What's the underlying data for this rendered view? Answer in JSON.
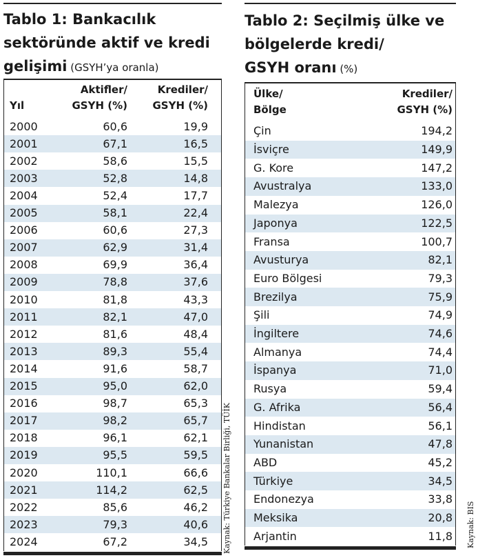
{
  "table1": {
    "title_lines": [
      "Tablo 1: Bankacılık",
      "sektöründe aktif ve kredi",
      "gelişimi"
    ],
    "unit": "(GSYH’ya oranla)",
    "columns": [
      [
        "Yıl"
      ],
      [
        "Aktifler/",
        "GSYH (%)"
      ],
      [
        "Krediler/",
        "GSYH (%)"
      ]
    ],
    "rows": [
      [
        "2000",
        "60,6",
        "19,9"
      ],
      [
        "2001",
        "67,1",
        "16,5"
      ],
      [
        "2002",
        "58,6",
        "15,5"
      ],
      [
        "2003",
        "52,8",
        "14,8"
      ],
      [
        "2004",
        "52,4",
        "17,7"
      ],
      [
        "2005",
        "58,1",
        "22,4"
      ],
      [
        "2006",
        "60,6",
        "27,3"
      ],
      [
        "2007",
        "62,9",
        "31,4"
      ],
      [
        "2008",
        "69,9",
        "36,4"
      ],
      [
        "2009",
        "78,8",
        "37,6"
      ],
      [
        "2010",
        "81,8",
        "43,3"
      ],
      [
        "2011",
        "82,1",
        "47,0"
      ],
      [
        "2012",
        "81,6",
        "48,4"
      ],
      [
        "2013",
        "89,3",
        "55,4"
      ],
      [
        "2014",
        "91,6",
        "58,7"
      ],
      [
        "2015",
        "95,0",
        "62,0"
      ],
      [
        "2016",
        "98,7",
        "65,3"
      ],
      [
        "2017",
        "98,2",
        "65,7"
      ],
      [
        "2018",
        "96,1",
        "62,1"
      ],
      [
        "2019",
        "95,5",
        "59,5"
      ],
      [
        "2020",
        "110,1",
        "66,6"
      ],
      [
        "2021",
        "114,2",
        "62,5"
      ],
      [
        "2022",
        "85,6",
        "46,2"
      ],
      [
        "2023",
        "79,3",
        "40,6"
      ],
      [
        "2024",
        "67,2",
        "34,5"
      ]
    ],
    "source": "Kaynak: Türkiye Bankalar Birliği, TÜİK"
  },
  "table2": {
    "title_lines": [
      "Tablo 2: Seçilmiş ülke ve",
      "bölgelerde kredi/",
      "GSYH oranı"
    ],
    "unit": "(%)",
    "columns": [
      [
        "Ülke/",
        "Bölge"
      ],
      [
        "Krediler/",
        "GSYH (%)"
      ]
    ],
    "rows": [
      [
        "Çin",
        "194,2"
      ],
      [
        "İsviçre",
        "149,9"
      ],
      [
        "G. Kore",
        "147,2"
      ],
      [
        "Avustralya",
        "133,0"
      ],
      [
        "Malezya",
        "126,0"
      ],
      [
        "Japonya",
        "122,5"
      ],
      [
        "Fransa",
        "100,7"
      ],
      [
        "Avusturya",
        "82,1"
      ],
      [
        "Euro Bölgesi",
        "79,3"
      ],
      [
        "Brezilya",
        "75,9"
      ],
      [
        "Şili",
        "74,9"
      ],
      [
        "İngiltere",
        "74,6"
      ],
      [
        "Almanya",
        "74,4"
      ],
      [
        "İspanya",
        "71,0"
      ],
      [
        "Rusya",
        "59,4"
      ],
      [
        "G. Afrika",
        "56,4"
      ],
      [
        "Hindistan",
        "56,1"
      ],
      [
        "Yunanistan",
        "47,8"
      ],
      [
        "ABD",
        "45,2"
      ],
      [
        "Türkiye",
        "34,5"
      ],
      [
        "Endonezya",
        "33,8"
      ],
      [
        "Meksika",
        "20,8"
      ],
      [
        "Arjantin",
        "11,8"
      ]
    ],
    "source": "Kaynak: BIS"
  }
}
